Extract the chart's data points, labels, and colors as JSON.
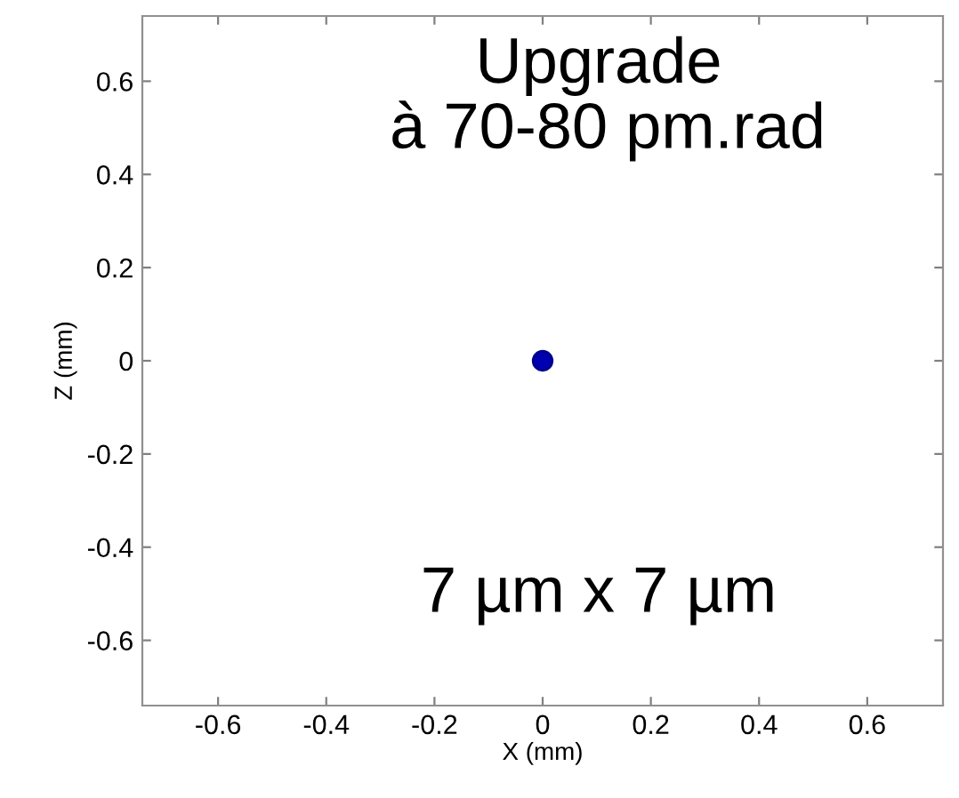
{
  "chart_data": {
    "type": "scatter",
    "xlabel": "X (mm)",
    "ylabel": "Z (mm)",
    "annotations": [
      "Upgrade\n à 70-80 pm.rad",
      "7 µm x 7 µm"
    ],
    "x": [
      0
    ],
    "values": [
      0
    ],
    "color": "#0000b0",
    "marker": "circle",
    "xlim": [
      -0.74,
      0.74
    ],
    "ylim": [
      -0.74,
      0.74
    ],
    "xticks": [
      -0.6,
      -0.4,
      -0.2,
      0,
      0.2,
      0.4,
      0.6
    ],
    "yticks": [
      -0.6,
      -0.4,
      -0.2,
      0,
      0.2,
      0.4,
      0.6
    ],
    "grid": false
  }
}
